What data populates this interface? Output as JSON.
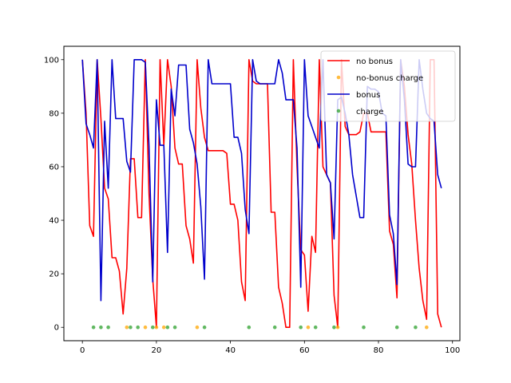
{
  "chart_data": {
    "type": "line",
    "title": "",
    "xlabel": "",
    "ylabel": "",
    "xlim": [
      -5,
      102
    ],
    "ylim": [
      -5,
      105
    ],
    "xticks": [
      0,
      20,
      40,
      60,
      80,
      100
    ],
    "yticks": [
      0,
      20,
      40,
      60,
      80,
      100
    ],
    "grid": false,
    "legend_location": "upper right",
    "series": [
      {
        "name": "no bonus",
        "kind": "line",
        "color": "#ff0000",
        "x": [
          0,
          1,
          2,
          3,
          4,
          5,
          6,
          7,
          8,
          9,
          10,
          11,
          12,
          13,
          14,
          15,
          16,
          17,
          18,
          19,
          20,
          21,
          22,
          23,
          24,
          25,
          26,
          27,
          28,
          29,
          30,
          31,
          32,
          33,
          34,
          35,
          36,
          37,
          38,
          39,
          40,
          41,
          42,
          43,
          44,
          45,
          46,
          47,
          48,
          49,
          50,
          51,
          52,
          53,
          54,
          55,
          56,
          57,
          58,
          59,
          60,
          61,
          62,
          63,
          64,
          65,
          66,
          67,
          68,
          69,
          70,
          71,
          72,
          73,
          74,
          75,
          76,
          77,
          78,
          79,
          80,
          81,
          82,
          83,
          84,
          85,
          86,
          87,
          88,
          89,
          90,
          91,
          92,
          93,
          94,
          95,
          96,
          97
        ],
        "y": [
          100,
          80,
          38,
          34,
          100,
          78,
          52,
          48,
          26,
          26,
          21,
          5,
          22,
          63,
          63,
          41,
          41,
          100,
          50,
          18,
          0,
          100,
          68,
          100,
          90,
          67,
          61,
          61,
          38,
          33,
          24,
          100,
          82,
          71,
          66,
          66,
          66,
          66,
          66,
          65,
          46,
          46,
          40,
          17,
          10,
          100,
          92,
          91,
          91,
          91,
          91,
          43,
          43,
          15,
          9,
          0,
          0,
          100,
          60,
          29,
          27,
          6,
          34,
          28,
          100,
          60,
          57,
          54,
          12,
          0,
          100,
          75,
          72,
          72,
          72,
          73,
          80,
          80,
          73,
          73,
          73,
          73,
          73,
          36,
          31,
          11,
          100,
          90,
          72,
          61,
          40,
          22,
          10,
          3,
          100,
          100,
          5,
          0
        ]
      },
      {
        "name": "no-bonus charge",
        "kind": "scatter",
        "color": "#ffa500",
        "x": [
          12,
          17,
          20,
          22,
          31,
          61,
          69,
          93
        ],
        "y": [
          0,
          0,
          0,
          0,
          0,
          0,
          0,
          0
        ]
      },
      {
        "name": "bonus",
        "kind": "line",
        "color": "#0000cc",
        "x": [
          0,
          1,
          2,
          3,
          4,
          5,
          6,
          7,
          8,
          9,
          10,
          11,
          12,
          13,
          14,
          15,
          16,
          17,
          18,
          19,
          20,
          21,
          22,
          23,
          24,
          25,
          26,
          27,
          28,
          29,
          30,
          31,
          32,
          33,
          34,
          35,
          36,
          37,
          38,
          39,
          40,
          41,
          42,
          43,
          44,
          45,
          46,
          47,
          48,
          49,
          50,
          51,
          52,
          53,
          54,
          55,
          56,
          57,
          58,
          59,
          60,
          61,
          62,
          63,
          64,
          65,
          66,
          67,
          68,
          69,
          70,
          71,
          72,
          73,
          74,
          75,
          76,
          77,
          78,
          79,
          80,
          81,
          82,
          83,
          84,
          85,
          86,
          87,
          88,
          89,
          90,
          91,
          92,
          93,
          94,
          95,
          96,
          97
        ],
        "y": [
          100,
          76,
          72,
          67,
          100,
          10,
          77,
          52,
          100,
          78,
          78,
          78,
          62,
          58,
          100,
          100,
          100,
          99,
          68,
          17,
          85,
          68,
          68,
          28,
          89,
          79,
          98,
          98,
          98,
          74,
          69,
          61,
          45,
          18,
          100,
          91,
          91,
          91,
          91,
          91,
          91,
          71,
          71,
          65,
          44,
          35,
          100,
          92,
          91,
          91,
          91,
          91,
          91,
          100,
          95,
          85,
          85,
          85,
          67,
          15,
          100,
          79,
          75,
          71,
          67,
          100,
          57,
          54,
          33,
          85,
          86,
          80,
          72,
          57,
          49,
          41,
          41,
          90,
          89,
          89,
          88,
          80,
          79,
          42,
          35,
          16,
          100,
          85,
          61,
          60,
          60,
          100,
          89,
          80,
          78,
          77,
          57,
          52
        ]
      },
      {
        "name": "charge",
        "kind": "scatter",
        "color": "#2ca02c",
        "x": [
          3,
          5,
          7,
          13,
          15,
          19,
          23,
          25,
          33,
          45,
          52,
          59,
          63,
          68,
          76,
          85,
          90
        ],
        "y": [
          0,
          0,
          0,
          0,
          0,
          0,
          0,
          0,
          0,
          0,
          0,
          0,
          0,
          0,
          0,
          0,
          0
        ]
      }
    ]
  }
}
